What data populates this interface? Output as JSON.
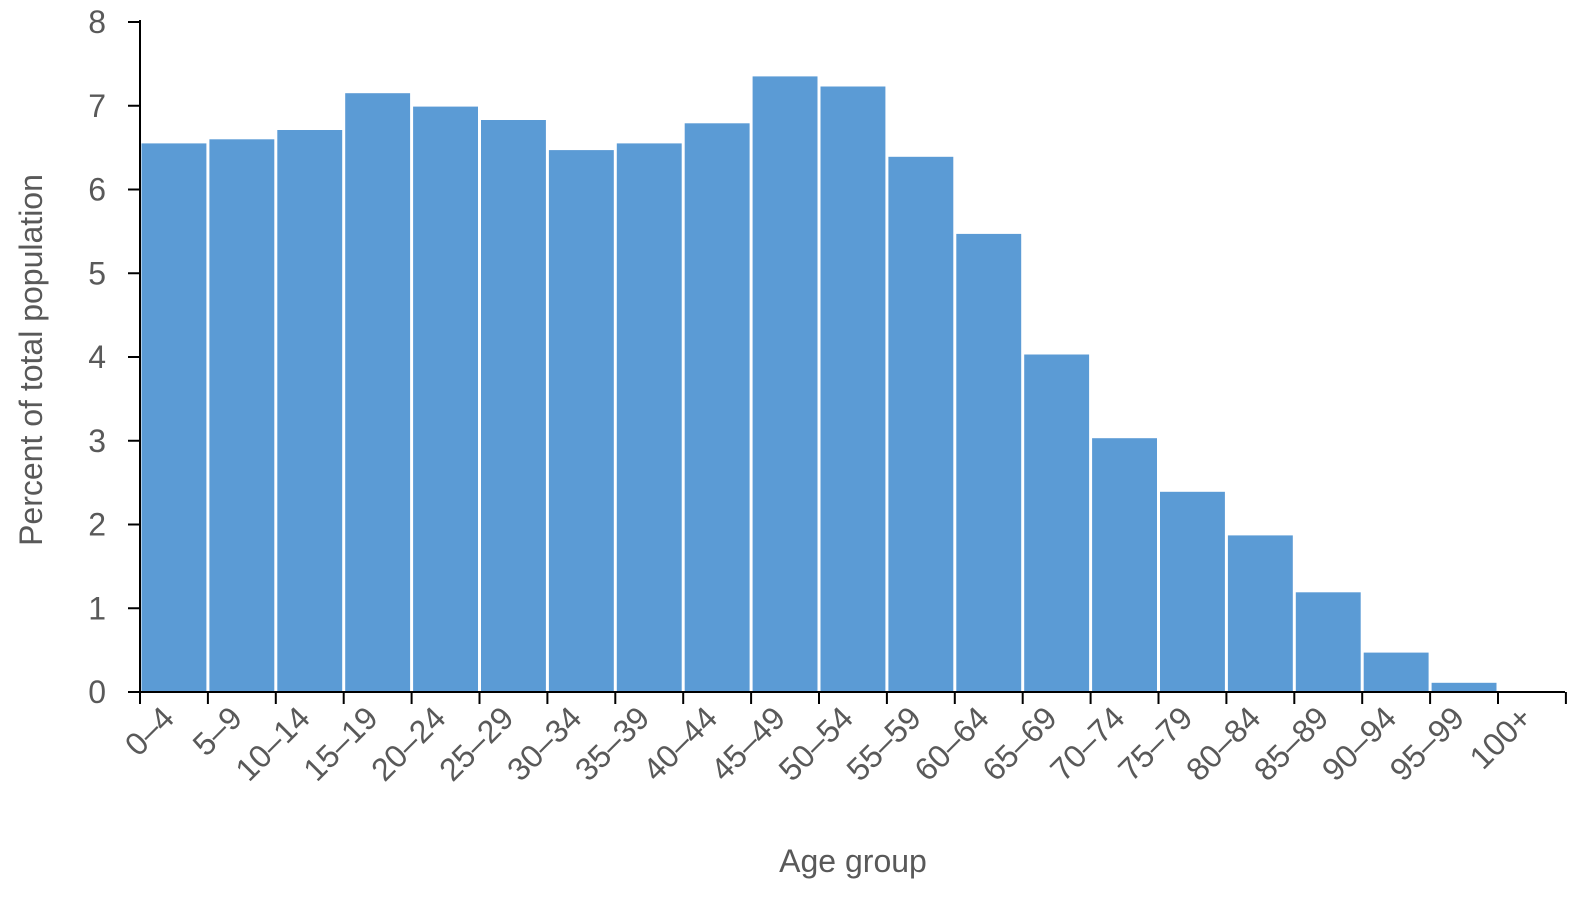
{
  "chart_data": {
    "type": "bar",
    "title": "",
    "xlabel": "Age group",
    "ylabel": "Percent of total population",
    "categories": [
      "0–4",
      "5–9",
      "10–14",
      "15–19",
      "20–24",
      "25–29",
      "30–34",
      "35–39",
      "40–44",
      "45–49",
      "50–54",
      "55–59",
      "60–64",
      "65–69",
      "70–74",
      "75–79",
      "80–84",
      "85–89",
      "90–94",
      "95–99",
      "100+"
    ],
    "values": [
      6.55,
      6.6,
      6.71,
      7.15,
      6.99,
      6.83,
      6.47,
      6.55,
      6.79,
      7.35,
      7.23,
      6.39,
      5.47,
      4.03,
      3.03,
      2.39,
      1.87,
      1.19,
      0.47,
      0.11,
      0.0
    ],
    "ylim": [
      0,
      8
    ],
    "yticks": [
      0,
      1,
      2,
      3,
      4,
      5,
      6,
      7,
      8
    ],
    "grid": false,
    "legend": "none",
    "colors": {
      "bar": "#5B9BD5",
      "axis": "#000000",
      "text": "#595959"
    }
  }
}
